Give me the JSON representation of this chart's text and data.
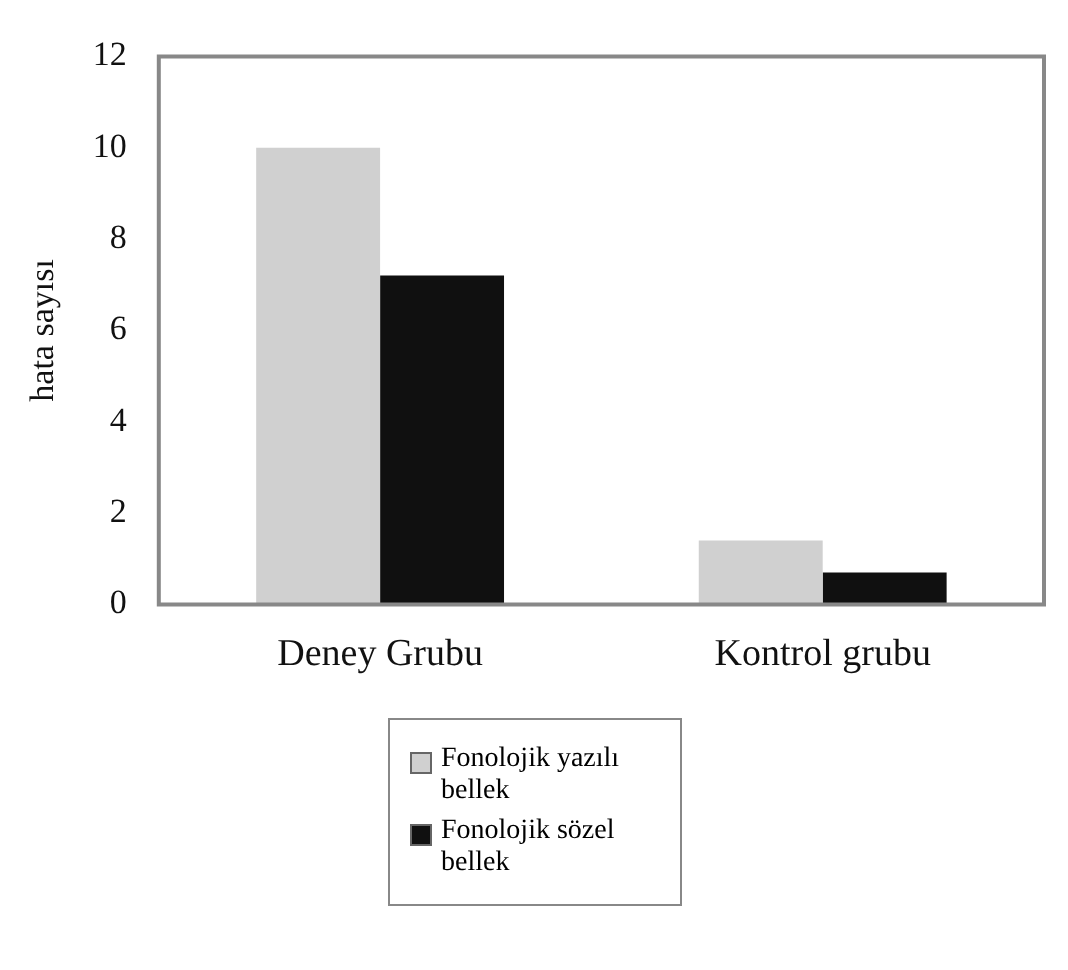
{
  "chart_data": {
    "type": "bar",
    "ylabel": "hata sayısı",
    "categories": [
      "Deney Grubu",
      "Kontrol grubu"
    ],
    "series": [
      {
        "name": "Fonolojik yazılı bellek",
        "color": "#d0d0d0",
        "values": [
          10,
          1.4
        ]
      },
      {
        "name": "Fonolojik sözel bellek",
        "color": "#101010",
        "values": [
          7.2,
          0.7
        ]
      }
    ],
    "ylim": [
      0,
      12
    ],
    "yticks": [
      0,
      2,
      4,
      6,
      8,
      10,
      12
    ],
    "grid": false,
    "legend": "bottom"
  }
}
